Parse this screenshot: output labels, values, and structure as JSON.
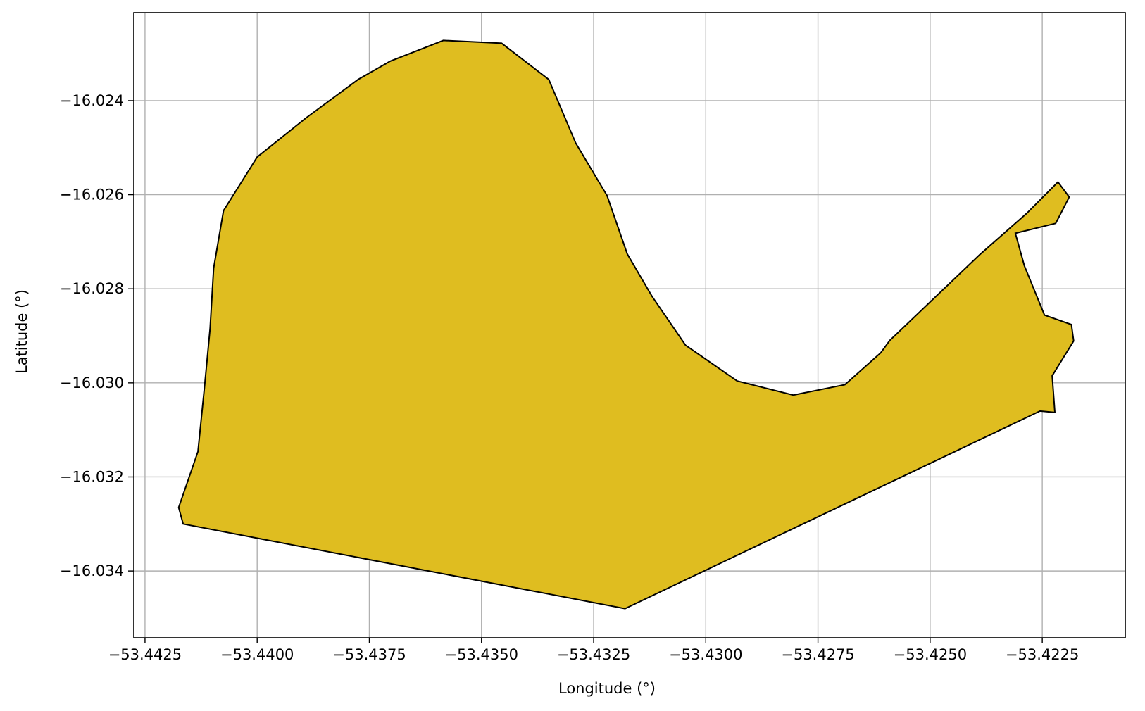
{
  "chart_data": {
    "type": "area",
    "title": "",
    "xlabel": "Longitude (°)",
    "ylabel": "Latitude (°)",
    "xlim": [
      -53.44275,
      -53.42065
    ],
    "ylim": [
      -16.03542,
      -16.02213
    ],
    "grid": true,
    "colors": {
      "fill": "#DFBD20",
      "stroke": "#000000",
      "grid": "#b0b0b0"
    },
    "x_ticks": [
      {
        "value": -53.4425,
        "label": "−53.4425"
      },
      {
        "value": -53.44,
        "label": "−53.4400"
      },
      {
        "value": -53.4375,
        "label": "−53.4375"
      },
      {
        "value": -53.435,
        "label": "−53.4350"
      },
      {
        "value": -53.4325,
        "label": "−53.4325"
      },
      {
        "value": -53.43,
        "label": "−53.4300"
      },
      {
        "value": -53.4275,
        "label": "−53.4275"
      },
      {
        "value": -53.425,
        "label": "−53.4250"
      },
      {
        "value": -53.4225,
        "label": "−53.4225"
      }
    ],
    "y_ticks": [
      {
        "value": -16.024,
        "label": "−16.024"
      },
      {
        "value": -16.026,
        "label": "−16.026"
      },
      {
        "value": -16.028,
        "label": "−16.028"
      },
      {
        "value": -16.03,
        "label": "−16.030"
      },
      {
        "value": -16.032,
        "label": "−16.032"
      },
      {
        "value": -16.034,
        "label": "−16.034"
      }
    ],
    "polygon": [
      [
        -53.44165,
        -16.033
      ],
      [
        -53.44175,
        -16.03265
      ],
      [
        -53.44132,
        -16.03146
      ],
      [
        -53.44118,
        -16.03015
      ],
      [
        -53.44105,
        -16.02885
      ],
      [
        -53.44097,
        -16.02756
      ],
      [
        -53.44075,
        -16.02634
      ],
      [
        -53.44,
        -16.0252
      ],
      [
        -53.4389,
        -16.02436
      ],
      [
        -53.43775,
        -16.02355
      ],
      [
        -53.43703,
        -16.02316
      ],
      [
        -53.43585,
        -16.02272
      ],
      [
        -53.43455,
        -16.02278
      ],
      [
        -53.4335,
        -16.02355
      ],
      [
        -53.4329,
        -16.0249
      ],
      [
        -53.4322,
        -16.02602
      ],
      [
        -53.43175,
        -16.02726
      ],
      [
        -53.4312,
        -16.02816
      ],
      [
        -53.43045,
        -16.0292
      ],
      [
        -53.4293,
        -16.02996
      ],
      [
        -53.42805,
        -16.03026
      ],
      [
        -53.4269,
        -16.03004
      ],
      [
        -53.4261,
        -16.02936
      ],
      [
        -53.4259,
        -16.0291
      ],
      [
        -53.4239,
        -16.02728
      ],
      [
        -53.42285,
        -16.0264
      ],
      [
        -53.42215,
        -16.02573
      ],
      [
        -53.4219,
        -16.02605
      ],
      [
        -53.4222,
        -16.02661
      ],
      [
        -53.4231,
        -16.02682
      ],
      [
        -53.4229,
        -16.02751
      ],
      [
        -53.42245,
        -16.02856
      ],
      [
        -53.42185,
        -16.02876
      ],
      [
        -53.4218,
        -16.02911
      ],
      [
        -53.42228,
        -16.02985
      ],
      [
        -53.42222,
        -16.03063
      ],
      [
        -53.42255,
        -16.0306
      ],
      [
        -53.4318,
        -16.0348
      ]
    ]
  }
}
